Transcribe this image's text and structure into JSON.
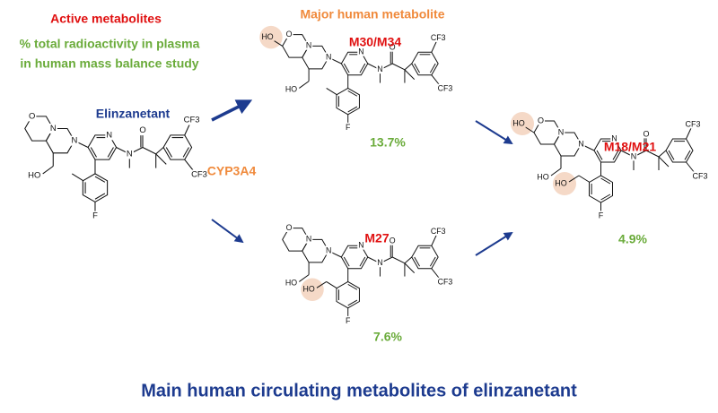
{
  "header": {
    "active": "Active metabolites",
    "radio_lines": [
      "% total radioactivity in plasma",
      "in human mass balance study"
    ],
    "major": "Major human metabolite",
    "enzyme": "CYP3A4"
  },
  "molecules": [
    {
      "name": "Elinzanetant",
      "atoms": [
        "O",
        "N",
        "N",
        "N",
        "N",
        "O",
        "F",
        "CF3",
        "CF3",
        "HO"
      ]
    },
    {
      "name": "M30/M34",
      "percent": "13.7%",
      "atoms": [
        "O",
        "N",
        "N",
        "N",
        "N",
        "O",
        "F",
        "CF3",
        "CF3",
        "HO",
        "HO"
      ]
    },
    {
      "name": "M27",
      "percent": "7.6%",
      "atoms": [
        "O",
        "N",
        "N",
        "N",
        "N",
        "O",
        "F",
        "CF3",
        "CF3",
        "HO",
        "HO"
      ]
    },
    {
      "name": "M18/M21",
      "percent": "4.9%",
      "atoms": [
        "O",
        "N",
        "N",
        "N",
        "N",
        "O",
        "F",
        "CF3",
        "CF3",
        "HO",
        "HO",
        "HO"
      ]
    }
  ],
  "footer": "Main human circulating metabolites of elinzanetant"
}
